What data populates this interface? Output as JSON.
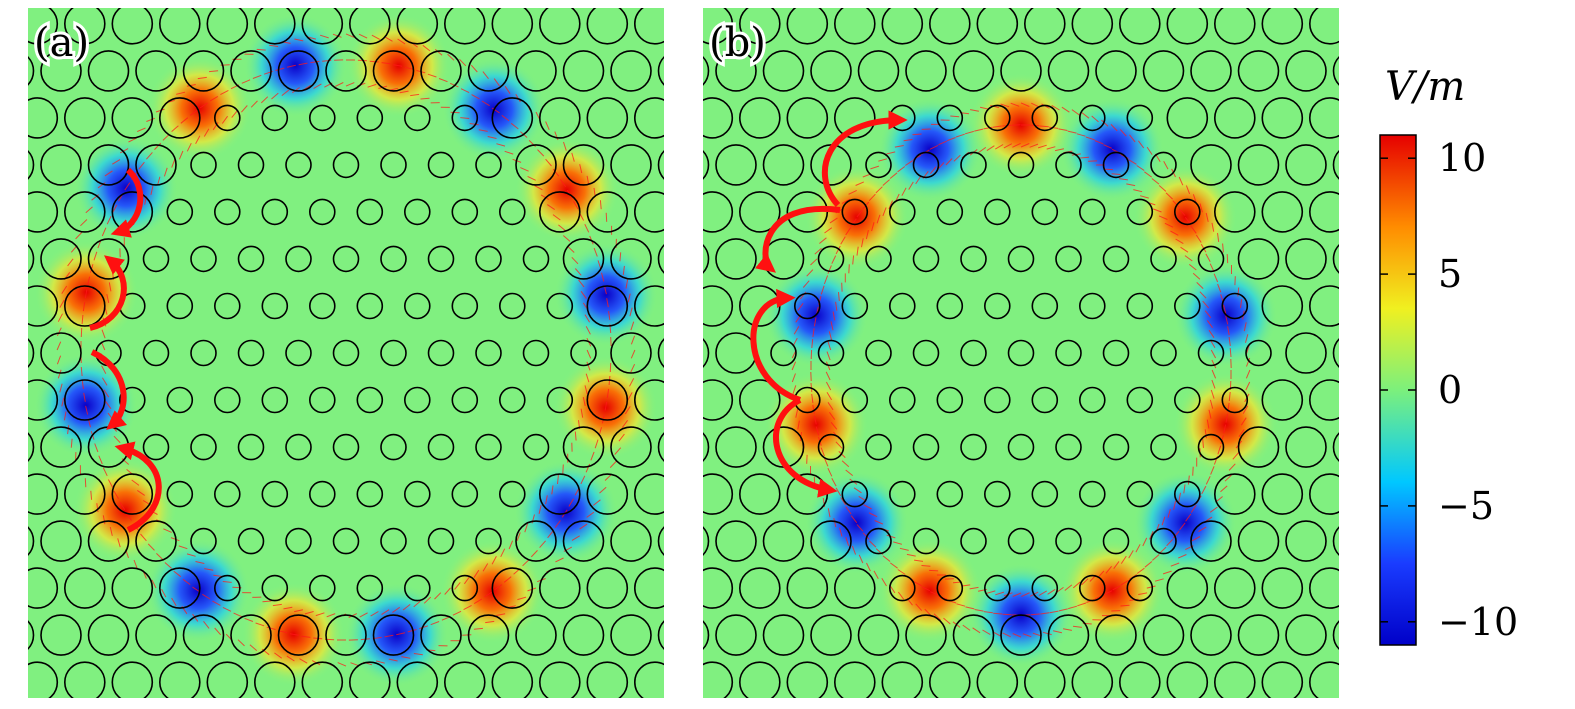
{
  "panels": [
    {
      "label": "(a)"
    },
    {
      "label": "(b)"
    }
  ],
  "colorbar": {
    "title": "V/m",
    "range": [
      -11,
      11
    ],
    "ticks": [
      {
        "value": 10,
        "label": "10"
      },
      {
        "value": 5,
        "label": "5"
      },
      {
        "value": 0,
        "label": "0"
      },
      {
        "value": -5,
        "label": "−5"
      },
      {
        "value": -10,
        "label": "−10"
      }
    ],
    "colors": [
      "#0000c8",
      "#1a3cff",
      "#00c8ff",
      "#7cf07c",
      "#f0f020",
      "#ff8c00",
      "#e60000"
    ]
  },
  "colors": {
    "background_field": "#80f080",
    "arrow": "#ff1010",
    "hole_outline": "#000000"
  }
}
